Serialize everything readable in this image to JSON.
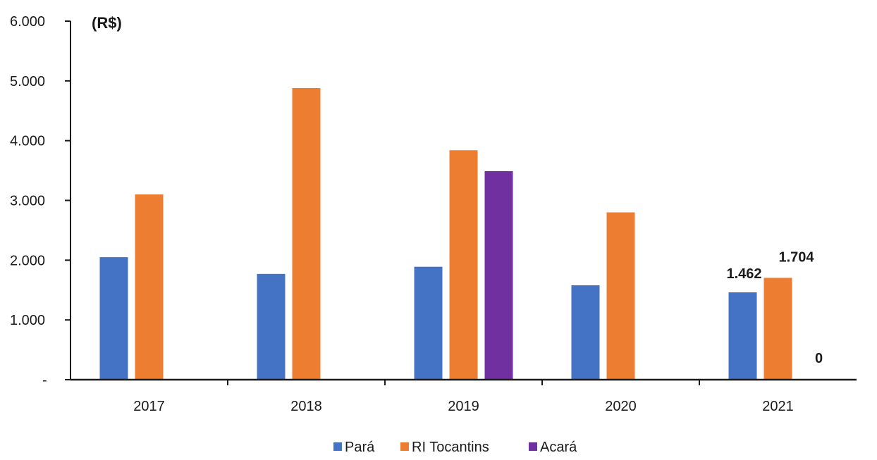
{
  "chart_data": {
    "type": "bar",
    "unit_label": "(R$)",
    "categories": [
      "2017",
      "2018",
      "2019",
      "2020",
      "2021"
    ],
    "series": [
      {
        "name": "Pará",
        "color": "#4472C4",
        "values": [
          2050,
          1770,
          1890,
          1580,
          1462
        ]
      },
      {
        "name": "RI Tocantins",
        "color": "#ED7D31",
        "values": [
          3100,
          4880,
          3840,
          2800,
          1704
        ]
      },
      {
        "name": "Acará",
        "color": "#7030A0",
        "values": [
          0,
          0,
          3490,
          0,
          0
        ]
      }
    ],
    "y_ticks": [
      {
        "value": 0,
        "label": "-"
      },
      {
        "value": 1000,
        "label": "1.000"
      },
      {
        "value": 2000,
        "label": "2.000"
      },
      {
        "value": 3000,
        "label": "3.000"
      },
      {
        "value": 4000,
        "label": "4.000"
      },
      {
        "value": 5000,
        "label": "5.000"
      },
      {
        "value": 6000,
        "label": "6.000"
      }
    ],
    "ylim": [
      0,
      6000
    ],
    "grid": false,
    "legend_position": "bottom",
    "data_labels": [
      {
        "category": "2021",
        "series": "Pará",
        "text": "1.462"
      },
      {
        "category": "2021",
        "series": "RI Tocantins",
        "text": "1.704"
      },
      {
        "category": "2021",
        "series": "Acará",
        "text": "0"
      }
    ]
  }
}
